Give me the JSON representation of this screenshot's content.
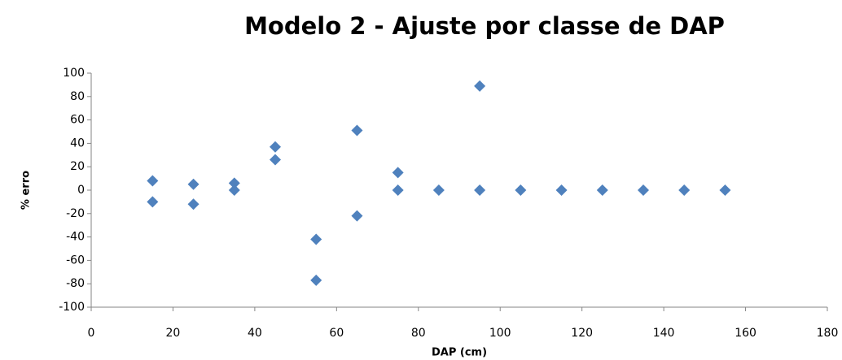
{
  "chart_data": {
    "type": "scatter",
    "title": "Modelo 2 - Ajuste por classe de DAP",
    "xlabel": "DAP (cm)",
    "ylabel": "% erro",
    "x": [
      15,
      15,
      25,
      25,
      35,
      35,
      45,
      45,
      55,
      55,
      65,
      65,
      75,
      75,
      85,
      95,
      95,
      105,
      115,
      125,
      135,
      145,
      155
    ],
    "values": [
      8,
      -10,
      5,
      -12,
      6,
      0,
      37,
      26,
      -42,
      -77,
      51,
      -22,
      15,
      0,
      0,
      89,
      0,
      0,
      0,
      0,
      0,
      0,
      0
    ],
    "color": "#4f81bd",
    "marker": "diamond",
    "xlim": [
      0,
      180
    ],
    "xticks": [
      0,
      20,
      40,
      60,
      80,
      100,
      120,
      140,
      160,
      180
    ],
    "ylim": [
      -100,
      100
    ],
    "yticks": [
      -100,
      -80,
      -60,
      -40,
      -20,
      0,
      20,
      40,
      60,
      80,
      100
    ],
    "grid": false
  }
}
